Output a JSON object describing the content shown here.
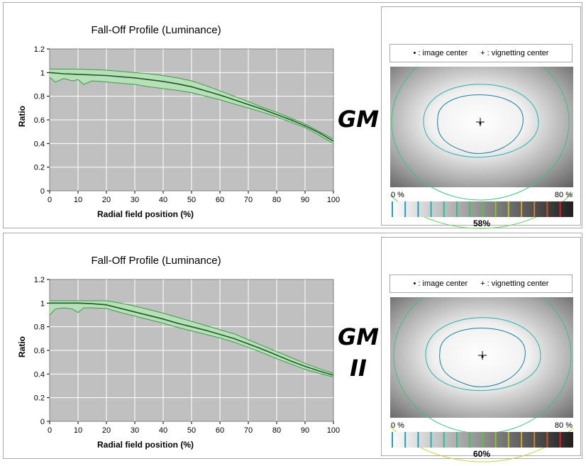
{
  "chart_data": [
    {
      "type": "line",
      "title": "Fall-Off Profile (Luminance)",
      "xlabel": "Radial field position (%)",
      "ylabel": "Ratio",
      "xlim": [
        0,
        100
      ],
      "ylim": [
        0,
        1.2
      ],
      "x_ticks": [
        "0",
        "10",
        "20",
        "30",
        "40",
        "50",
        "60",
        "70",
        "80",
        "90",
        "100"
      ],
      "y_ticks": [
        "0",
        "0.2",
        "0.4",
        "0.6",
        "0.8",
        "1",
        "1.2"
      ],
      "grid": true,
      "series": [
        {
          "role": "mean",
          "x": [
            0,
            5,
            10,
            15,
            20,
            25,
            30,
            35,
            40,
            45,
            50,
            55,
            60,
            65,
            70,
            75,
            80,
            85,
            90,
            95,
            100
          ],
          "y": [
            1.0,
            0.99,
            0.985,
            0.98,
            0.975,
            0.965,
            0.955,
            0.94,
            0.925,
            0.905,
            0.88,
            0.845,
            0.81,
            0.77,
            0.73,
            0.69,
            0.645,
            0.6,
            0.55,
            0.49,
            0.42
          ]
        },
        {
          "role": "upper",
          "x": [
            0,
            5,
            10,
            15,
            20,
            25,
            30,
            35,
            40,
            45,
            50,
            55,
            60,
            65,
            70,
            75,
            80,
            85,
            90,
            95,
            100
          ],
          "y": [
            1.03,
            1.03,
            1.03,
            1.025,
            1.02,
            1.01,
            1.0,
            0.99,
            0.975,
            0.955,
            0.93,
            0.89,
            0.845,
            0.8,
            0.755,
            0.705,
            0.665,
            0.615,
            0.565,
            0.5,
            0.44
          ]
        },
        {
          "role": "lower",
          "x": [
            0,
            2,
            5,
            8,
            10,
            12,
            15,
            20,
            25,
            30,
            35,
            40,
            45,
            50,
            55,
            60,
            65,
            70,
            75,
            80,
            85,
            90,
            95,
            100
          ],
          "y": [
            0.96,
            0.92,
            0.95,
            0.93,
            0.94,
            0.9,
            0.93,
            0.92,
            0.91,
            0.9,
            0.88,
            0.865,
            0.85,
            0.83,
            0.8,
            0.77,
            0.735,
            0.7,
            0.665,
            0.625,
            0.58,
            0.535,
            0.47,
            0.4
          ]
        }
      ]
    },
    {
      "type": "line",
      "title": "Fall-Off Profile (Luminance)",
      "xlabel": "Radial field position (%)",
      "ylabel": "Ratio",
      "xlim": [
        0,
        100
      ],
      "ylim": [
        0,
        1.2
      ],
      "x_ticks": [
        "0",
        "10",
        "20",
        "30",
        "40",
        "50",
        "60",
        "70",
        "80",
        "90",
        "100"
      ],
      "y_ticks": [
        "0",
        "0.2",
        "0.4",
        "0.6",
        "0.8",
        "1",
        "1.2"
      ],
      "grid": true,
      "series": [
        {
          "role": "mean",
          "x": [
            0,
            5,
            10,
            15,
            20,
            25,
            30,
            35,
            40,
            45,
            50,
            55,
            60,
            65,
            70,
            75,
            80,
            85,
            90,
            95,
            100
          ],
          "y": [
            1.0,
            1.0,
            1.0,
            0.995,
            0.985,
            0.955,
            0.925,
            0.895,
            0.865,
            0.83,
            0.8,
            0.77,
            0.735,
            0.7,
            0.655,
            0.61,
            0.56,
            0.51,
            0.465,
            0.425,
            0.39
          ]
        },
        {
          "role": "upper",
          "x": [
            0,
            5,
            10,
            15,
            20,
            25,
            30,
            35,
            40,
            45,
            50,
            55,
            60,
            65,
            70,
            75,
            80,
            85,
            90,
            95,
            100
          ],
          "y": [
            1.02,
            1.02,
            1.02,
            1.02,
            1.02,
            1.0,
            0.975,
            0.945,
            0.915,
            0.88,
            0.845,
            0.81,
            0.775,
            0.74,
            0.69,
            0.64,
            0.59,
            0.54,
            0.49,
            0.445,
            0.405
          ]
        },
        {
          "role": "lower",
          "x": [
            0,
            2,
            5,
            8,
            10,
            12,
            15,
            20,
            25,
            30,
            35,
            40,
            45,
            50,
            55,
            60,
            65,
            70,
            75,
            80,
            85,
            90,
            95,
            100
          ],
          "y": [
            0.9,
            0.95,
            0.96,
            0.95,
            0.92,
            0.96,
            0.96,
            0.955,
            0.92,
            0.89,
            0.86,
            0.83,
            0.795,
            0.765,
            0.735,
            0.705,
            0.67,
            0.625,
            0.58,
            0.53,
            0.485,
            0.44,
            0.405,
            0.375
          ]
        }
      ]
    }
  ],
  "panels": [
    {
      "model_label_lines": [
        "GM"
      ],
      "vignetting": {
        "legend_image_center": "• : image center",
        "legend_vignetting_center": "+ : vignetting center",
        "scale_min": "0 %",
        "scale_max": "80 %",
        "percent": "58%",
        "contours": [
          "#1a7fa0",
          "#2ab0b0",
          "#40c080",
          "#70d060"
        ]
      }
    },
    {
      "model_label_lines": [
        "GM",
        "II"
      ],
      "vignetting": {
        "legend_image_center": "• : image center",
        "legend_vignetting_center": "+ : vignetting center",
        "scale_min": "0 %",
        "scale_max": "80 %",
        "percent": "60%",
        "contours": [
          "#1a7fa0",
          "#2ab0b0",
          "#40c080",
          "#c8d040"
        ]
      }
    }
  ],
  "colors": {
    "plot_bg": "#c0c0c0",
    "band_fill": "#b8e0b8",
    "band_edge": "#3c9a4a",
    "mean_line": "#1e5a28",
    "scale_ticks": [
      "#20a0c0",
      "#20a0c0",
      "#20a0c0",
      "#20b0b0",
      "#20c0a0",
      "#30c080",
      "#40c060",
      "#60c040",
      "#90c030",
      "#c0c030",
      "#d0a030",
      "#d08030",
      "#d05020",
      "#e02020"
    ]
  }
}
